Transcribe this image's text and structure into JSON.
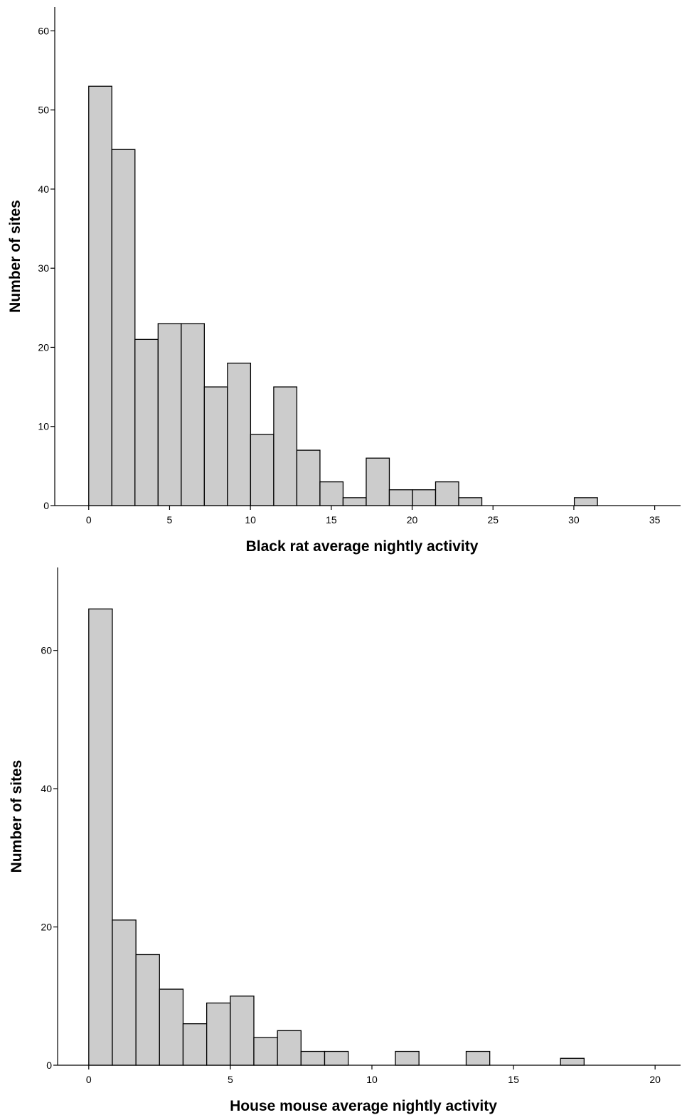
{
  "chart_data": [
    {
      "type": "bar",
      "title": "",
      "xlabel": "Black rat average nightly activity",
      "ylabel": "Number of sites",
      "xlim": [
        -2.1,
        36.6
      ],
      "ylim": [
        0,
        63
      ],
      "xticks": [
        0,
        5,
        10,
        15,
        20,
        25,
        30,
        35
      ],
      "yticks": [
        0,
        10,
        20,
        30,
        40,
        50,
        60
      ],
      "bin_width": 1.43,
      "bin_starts": [
        0,
        1.43,
        2.86,
        4.29,
        5.72,
        7.15,
        8.58,
        10.01,
        11.44,
        12.87,
        14.3,
        15.73,
        17.16,
        18.59,
        20.02,
        21.45,
        22.88,
        30.03
      ],
      "values": [
        53,
        45,
        21,
        23,
        23,
        15,
        18,
        9,
        15,
        7,
        3,
        1,
        6,
        2,
        2,
        3,
        1,
        1
      ],
      "grid": false,
      "bar_color": "#cccccc"
    },
    {
      "type": "bar",
      "title": "",
      "xlabel": "House mouse average nightly activity",
      "ylabel": "Number of sites",
      "xlim": [
        -1.1,
        20.9
      ],
      "ylim": [
        0,
        72
      ],
      "xticks": [
        0,
        5,
        10,
        15,
        20
      ],
      "yticks": [
        0,
        20,
        40,
        60
      ],
      "bin_width": 0.833,
      "bin_starts": [
        0,
        0.833,
        1.666,
        2.499,
        3.332,
        4.165,
        4.998,
        5.831,
        6.664,
        7.497,
        8.33,
        10.829,
        13.328,
        16.66
      ],
      "values": [
        66,
        21,
        16,
        11,
        6,
        9,
        10,
        4,
        5,
        2,
        2,
        2,
        2,
        1
      ],
      "grid": false,
      "bar_color": "#cccccc"
    }
  ]
}
